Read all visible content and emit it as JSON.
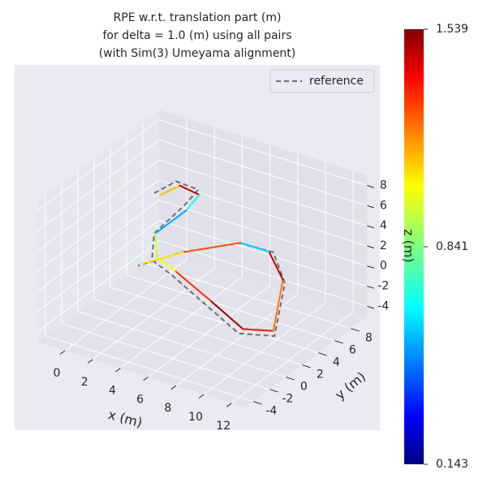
{
  "chart_data": {
    "type": "line3d",
    "title": "RPE w.r.t. translation part (m)",
    "subtitle": "for delta = 1.0 (m) using all pairs",
    "subtitle2": "(with Sim(3) Umeyama alignment)",
    "xlabel": "x (m)",
    "ylabel": "y (m)",
    "zlabel": "z (m)",
    "xlim": [
      -2,
      13
    ],
    "ylim": [
      -5,
      10
    ],
    "zlim": [
      -5,
      9
    ],
    "xticks": [
      0,
      2,
      4,
      6,
      8,
      10,
      12
    ],
    "yticks": [
      -4,
      -2,
      0,
      2,
      4,
      6,
      8
    ],
    "zticks": [
      -4,
      -2,
      0,
      2,
      4,
      6,
      8
    ],
    "grid": true,
    "legend": "upper right",
    "series": [
      {
        "name": "reference",
        "color": "#6e6e6e",
        "dash": true,
        "x": [
          0,
          1,
          2,
          1,
          0,
          1,
          3,
          6,
          9,
          11,
          10,
          8,
          5,
          2,
          0
        ],
        "y": [
          6,
          7,
          8,
          8,
          6,
          4,
          3,
          2,
          1,
          2,
          5,
          7,
          8,
          6,
          4
        ],
        "z": [
          4,
          5,
          4,
          2,
          0,
          -1,
          -1,
          -2,
          -3,
          -3,
          0,
          1,
          0,
          -1,
          -2
        ]
      },
      {
        "type": "colored",
        "x": [
          0.3,
          1.2,
          2.2,
          1.3,
          0.2,
          1.3,
          3.2,
          6.3,
          9.2,
          10.8,
          9.8,
          7.8,
          5.2,
          2.2,
          0.3
        ],
        "y": [
          6.2,
          7.1,
          7.8,
          7.7,
          5.8,
          4.2,
          3.2,
          2.3,
          1.2,
          2.2,
          5.1,
          6.8,
          7.7,
          5.8,
          4.1
        ],
        "z": [
          3.8,
          4.6,
          3.7,
          1.8,
          0.2,
          -0.8,
          -0.7,
          -1.8,
          -2.6,
          -2.7,
          0.2,
          1.1,
          0.3,
          -0.8,
          -1.7
        ],
        "values": [
          1.1,
          1.45,
          0.7,
          0.55,
          0.95,
          1.0,
          1.3,
          1.5,
          1.35,
          1.2,
          1.45,
          0.6,
          1.25,
          1.05,
          0.9
        ]
      }
    ],
    "colorbar": {
      "lim": [
        0.143,
        1.539
      ],
      "ticks": [
        0.143,
        0.841,
        1.539
      ]
    }
  }
}
